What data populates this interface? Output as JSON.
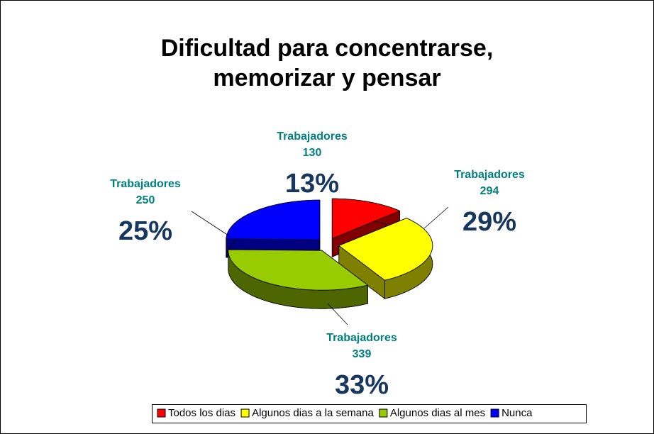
{
  "chart_data": {
    "type": "pie3d",
    "title": [
      "Dificultad para concentrarse,",
      "memorizar y pensar"
    ],
    "categories": [
      "Todos los dias",
      "Algunos dias a la semana",
      "Algunos dias al mes",
      "Nunca"
    ],
    "series": [
      {
        "name": "Trabajadores",
        "values": [
          130,
          294,
          339,
          250
        ],
        "percents": [
          13,
          29,
          33,
          25
        ],
        "percent_labels": [
          "13%",
          "29%",
          "33%",
          "25%"
        ]
      }
    ],
    "colors": [
      "#ff0000",
      "#ffff00",
      "#99cc00",
      "#0000ff"
    ],
    "legend": "bottom"
  }
}
